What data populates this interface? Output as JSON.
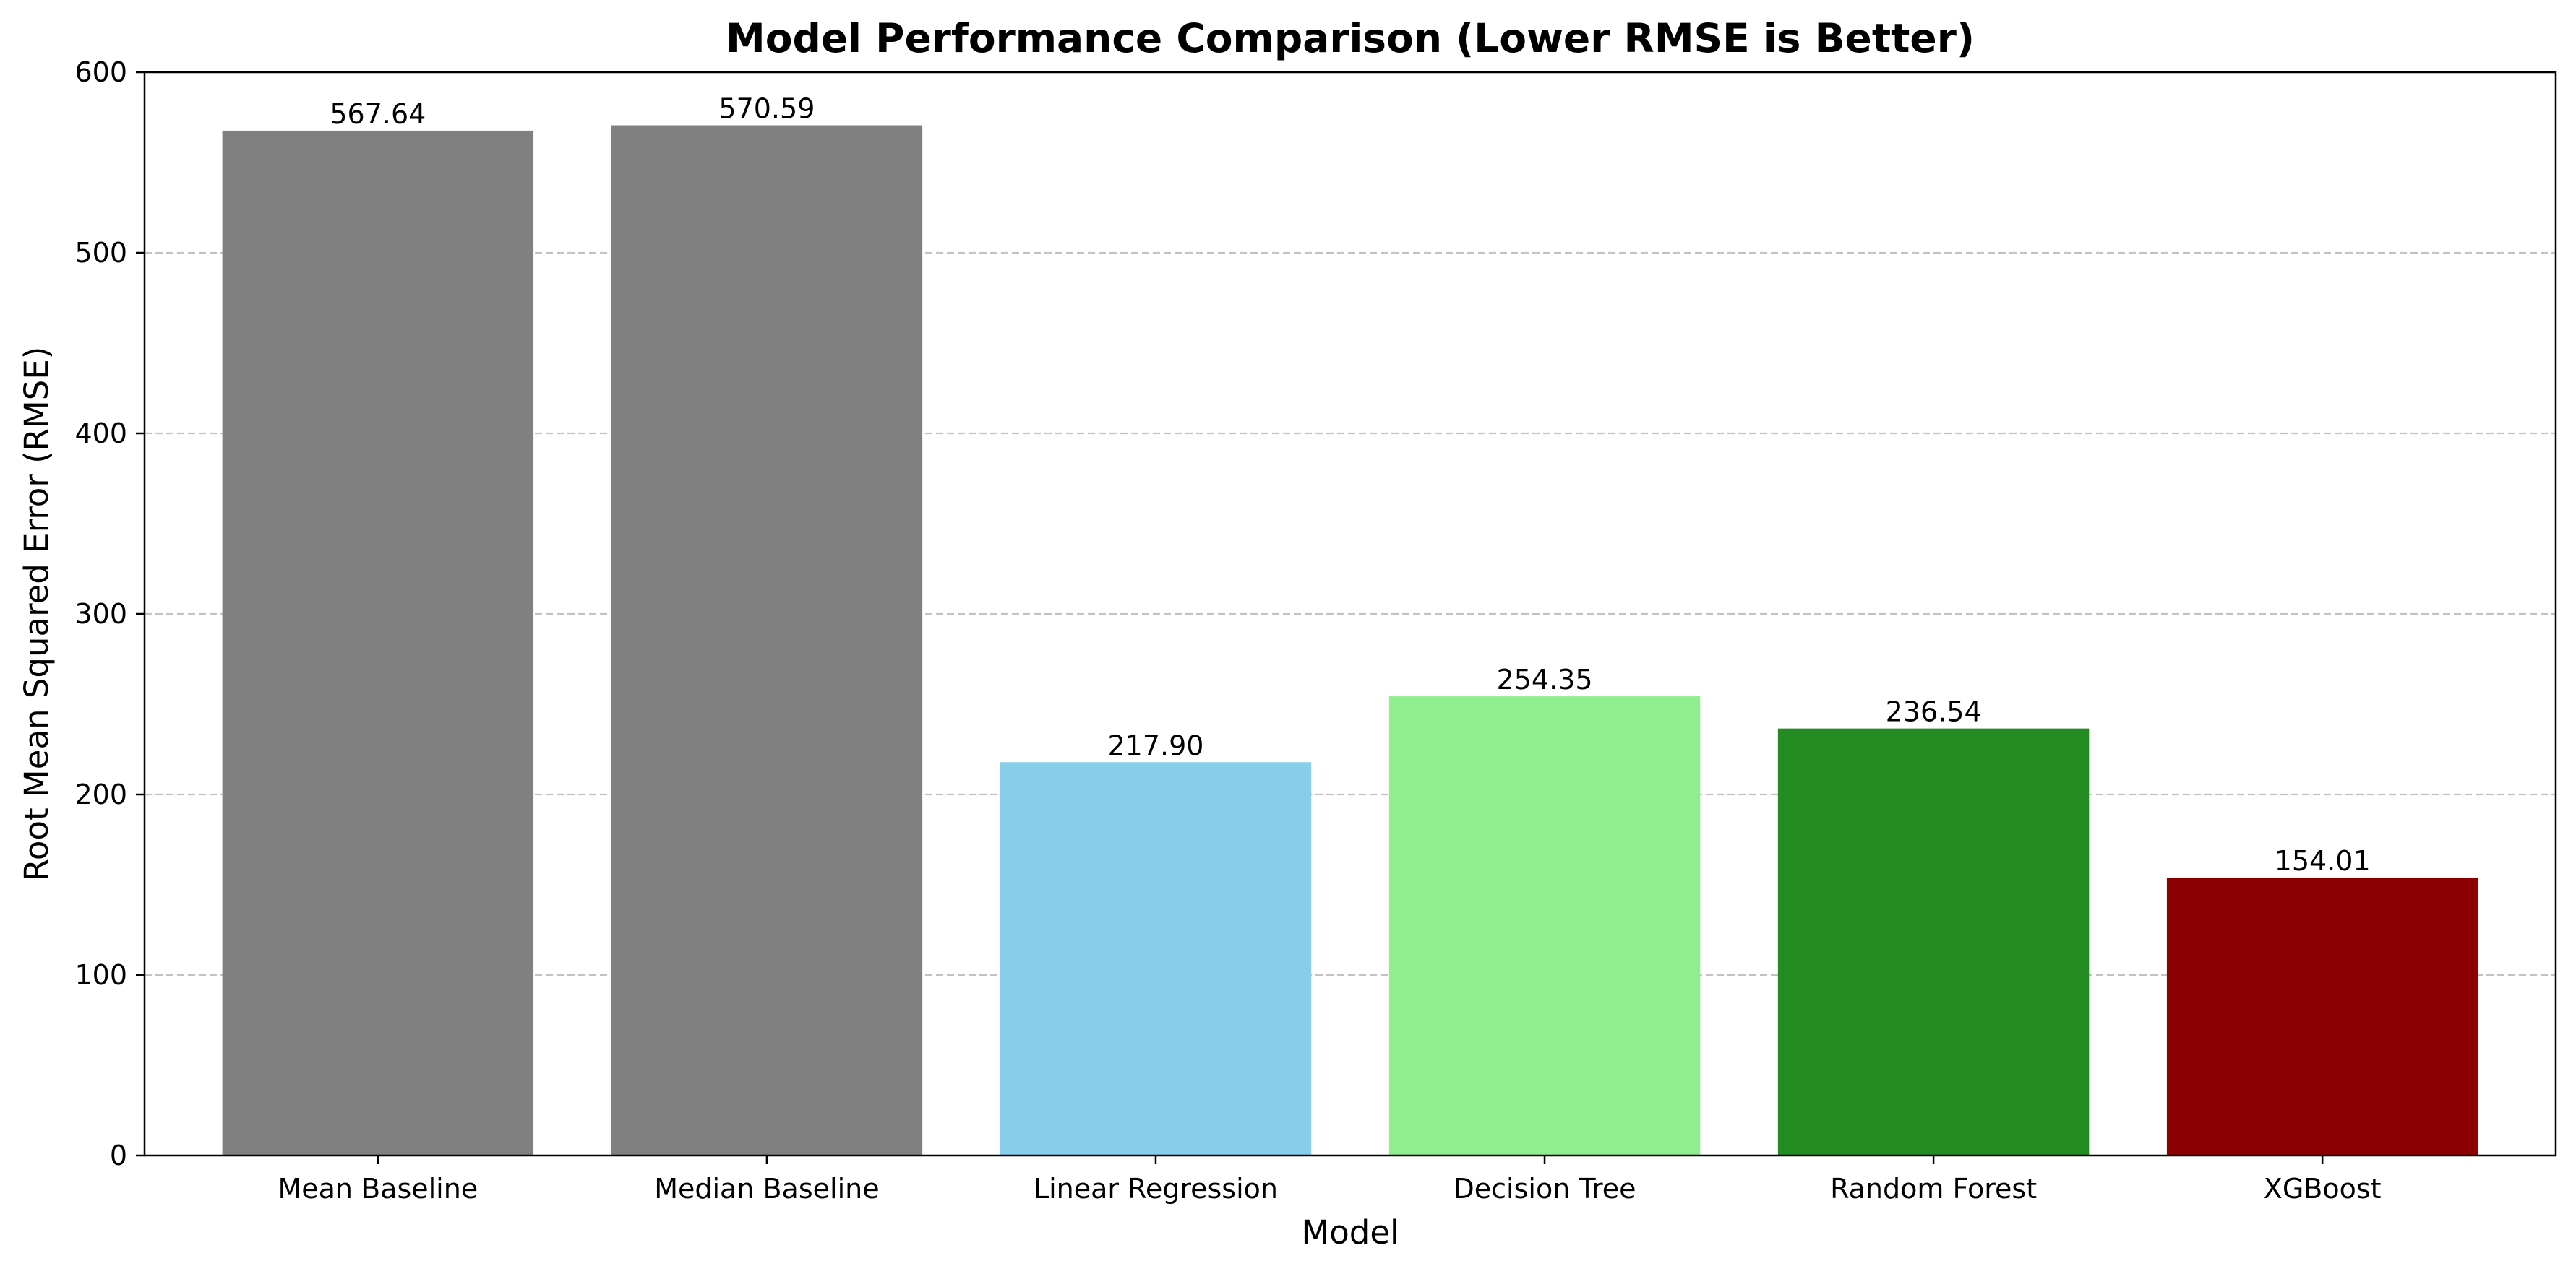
{
  "chart_data": {
    "type": "bar",
    "title": "Model Performance Comparison (Lower RMSE is Better)",
    "xlabel": "Model",
    "ylabel": "Root Mean Squared Error (RMSE)",
    "categories": [
      "Mean Baseline",
      "Median Baseline",
      "Linear Regression",
      "Decision Tree",
      "Random Forest",
      "XGBoost"
    ],
    "values": [
      567.64,
      570.59,
      217.9,
      254.35,
      236.54,
      154.01
    ],
    "value_labels": [
      "567.64",
      "570.59",
      "217.90",
      "254.35",
      "236.54",
      "154.01"
    ],
    "colors": [
      "#808080",
      "#808080",
      "#87CEEB",
      "#90EE90",
      "#228B22",
      "#8B0000"
    ],
    "ylim": [
      0,
      600
    ],
    "yticks": [
      0,
      100,
      200,
      300,
      400,
      500,
      600
    ],
    "grid": "y-dashed"
  }
}
